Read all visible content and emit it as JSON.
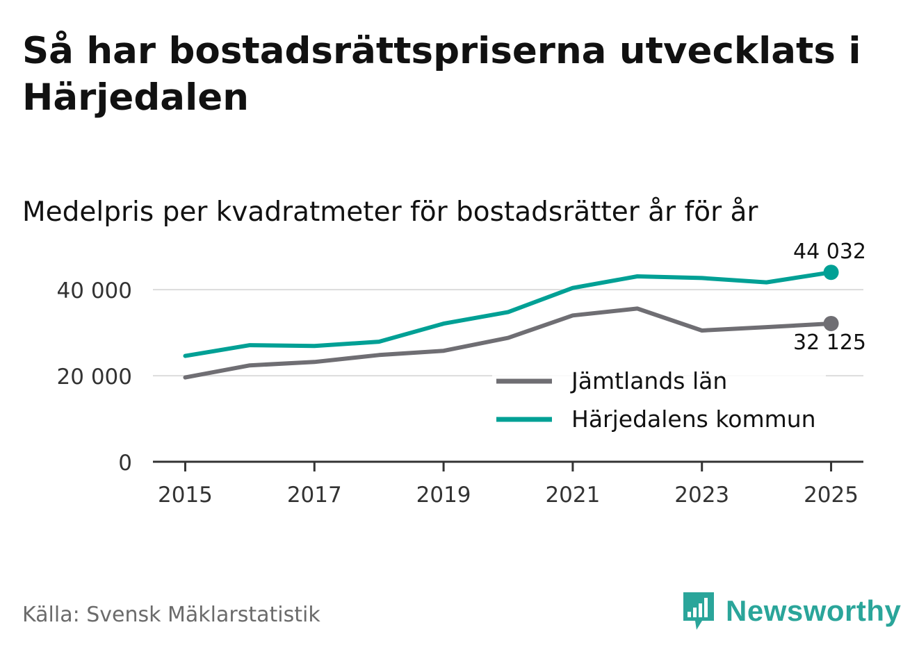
{
  "header": {
    "title": "Så har bostadsrättspriserna utvecklats i Härjedalen",
    "subtitle": "Medelpris per kvadratmeter för bostadsrätter år för år"
  },
  "footer": {
    "source": "Källa: Svensk Mäklarstatistik",
    "brand": "Newsworthy"
  },
  "colors": {
    "teal": "#00a095",
    "gray": "#6f6e73",
    "grid": "#dcdcdc",
    "axis": "#333333",
    "brand": "#2aa59a"
  },
  "chart_data": {
    "type": "line",
    "title": "Medelpris per kvadratmeter för bostadsrätter år för år",
    "xlabel": "",
    "ylabel": "",
    "x": [
      2015,
      2016,
      2017,
      2018,
      2019,
      2020,
      2021,
      2022,
      2023,
      2024,
      2025
    ],
    "xticks": [
      2015,
      2017,
      2019,
      2021,
      2023,
      2025
    ],
    "xlim": [
      2014.5,
      2025.5
    ],
    "ylim": [
      0,
      46000
    ],
    "yticks": [
      0,
      20000,
      40000
    ],
    "ytick_labels": [
      "0",
      "20 000",
      "40 000"
    ],
    "grid": true,
    "legend_position": "lower-right",
    "series": [
      {
        "name": "Jämtlands län",
        "color": "#6f6e73",
        "values": [
          19600,
          22400,
          23200,
          24800,
          25800,
          28800,
          34000,
          35600,
          30500,
          31300,
          32125
        ],
        "end_label": "32 125"
      },
      {
        "name": "Härjedalens kommun",
        "color": "#00a095",
        "values": [
          24600,
          27100,
          26900,
          27900,
          32100,
          34800,
          40400,
          43100,
          42700,
          41700,
          44032
        ],
        "end_label": "44 032"
      }
    ]
  }
}
